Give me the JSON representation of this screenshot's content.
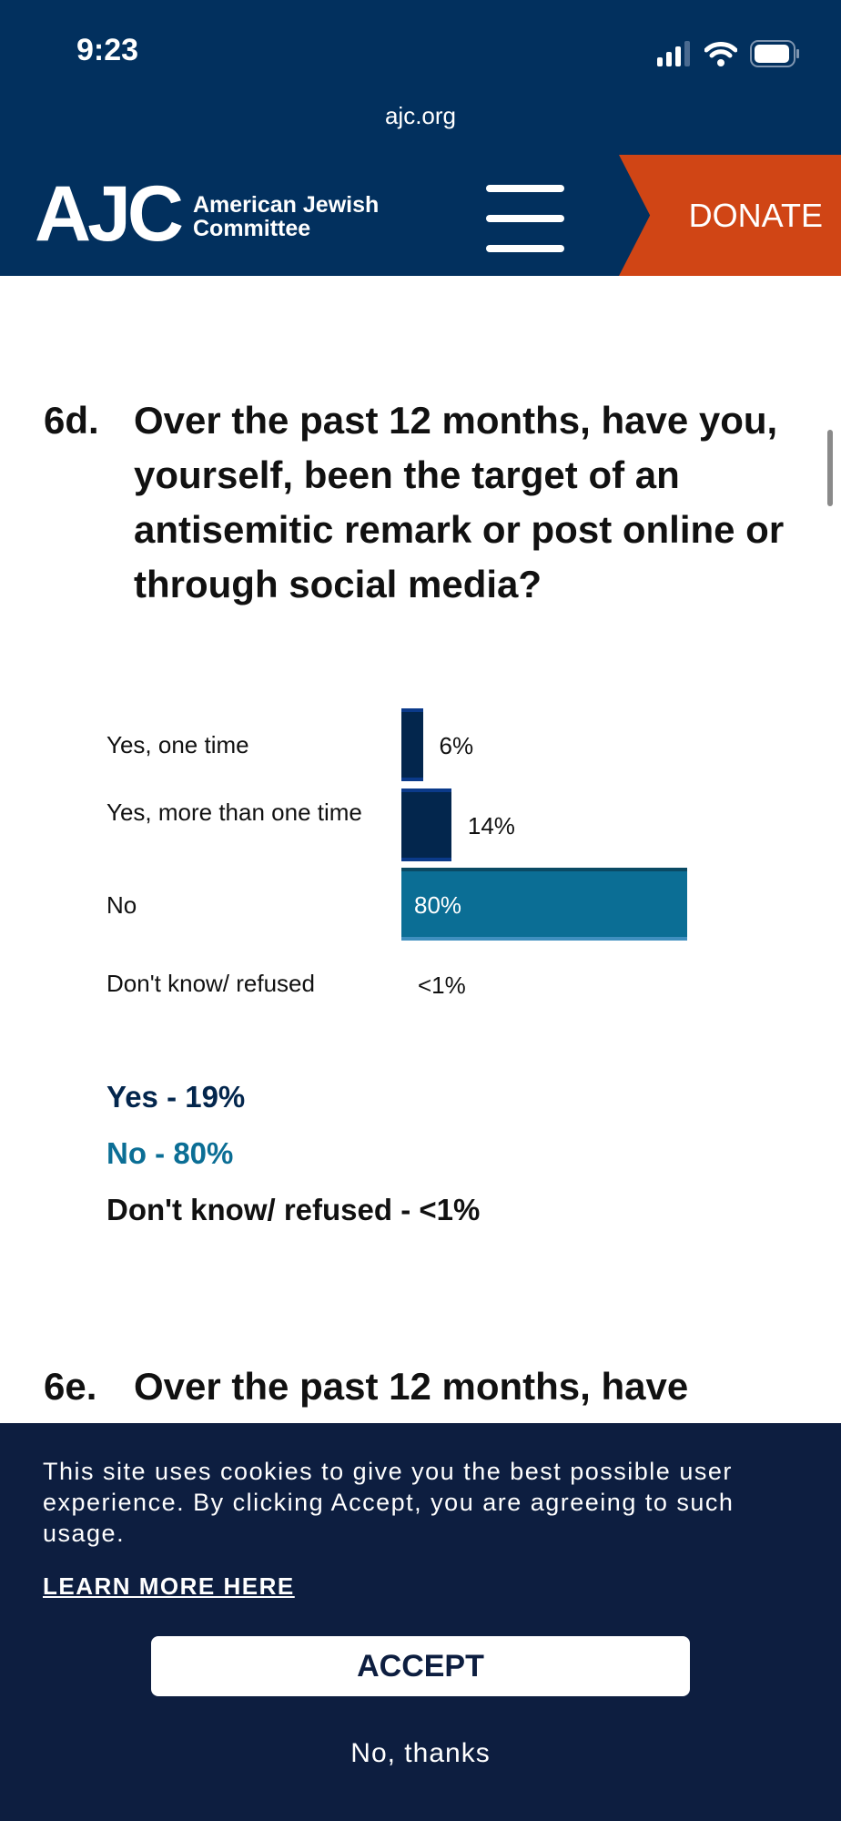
{
  "status_bar": {
    "time": "9:23"
  },
  "browser": {
    "url": "ajc.org"
  },
  "site": {
    "logo": "AJC",
    "logo_line1": "American Jewish",
    "logo_line2": "Committee",
    "donate": "DONATE"
  },
  "question_6d": {
    "number": "6d.",
    "text": "Over the past 12 months, have you, yourself, been the target of an antisemitic remark or post online or through social media?"
  },
  "chart_data": {
    "type": "bar",
    "orientation": "horizontal",
    "categories": [
      "Yes, one time",
      "Yes, more than one time",
      "No",
      "Don't know/ refused"
    ],
    "values": [
      6,
      14,
      80,
      0.5
    ],
    "labels": [
      "6%",
      "14%",
      "80%",
      "<1%"
    ],
    "colors": [
      "#03264d",
      "#03264d",
      "#0b6e95",
      "#03264d"
    ]
  },
  "summary": [
    {
      "text": "Yes - 19%",
      "color": "#03264d"
    },
    {
      "text": "No - 80%",
      "color": "#0b6e95"
    },
    {
      "text": "Don't know/ refused - <1%",
      "color": "#111111"
    }
  ],
  "question_6e": {
    "number": "6e.",
    "text": "Over the past 12 months, have"
  },
  "cookie": {
    "text": "This site uses cookies to give you the best possible user experience.  By clicking Accept, you are agreeing to such usage.",
    "learn_more": "LEARN MORE HERE",
    "accept": "ACCEPT",
    "decline": "No, thanks"
  }
}
